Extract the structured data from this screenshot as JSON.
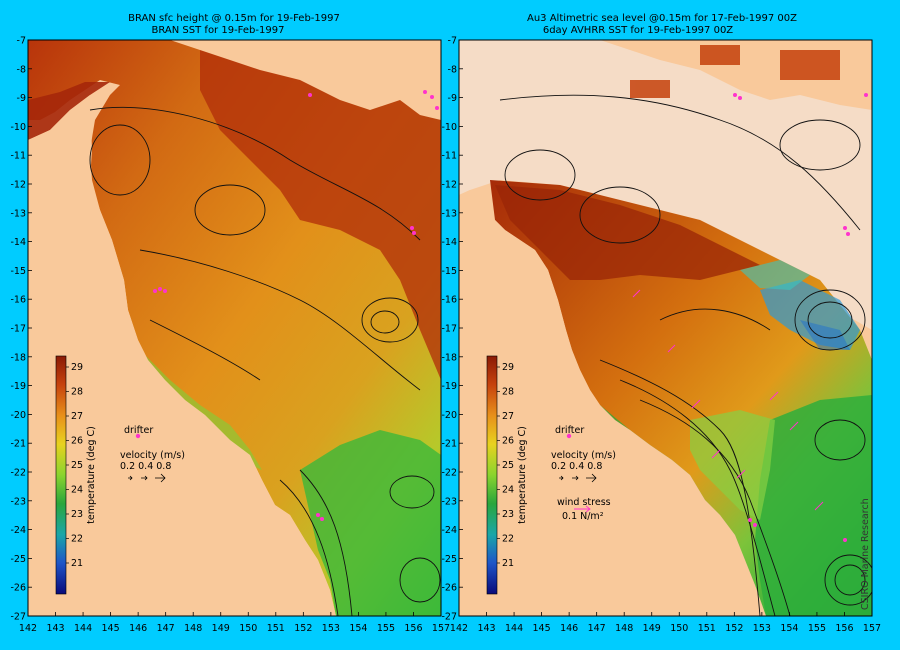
{
  "left_panel": {
    "title_line1": "BRAN sfc height @ 0.15m  for 19-Feb-1997",
    "title_line2": "BRAN SST for 19-Feb-1997",
    "colorbar_label": "temperature (deg C)",
    "drifter_label": "drifter",
    "velocity_label": "velocity (m/s)",
    "velocity_scale": "0.2 0.4 0.8"
  },
  "right_panel": {
    "title_line1": "Au3 Altimetric sea level  @0.15m  for 17-Feb-1997 00Z",
    "title_line2": "6day AVHRR SST for 19-Feb-1997 00Z",
    "colorbar_label": "temperature (deg C)",
    "drifter_label": "drifter",
    "velocity_label": "velocity (m/s)",
    "velocity_scale": "0.2 0.4 0.8",
    "wind_label": "wind stress",
    "wind_scale": "0.1 N/m²",
    "credit": "CSIRO Marine Research"
  },
  "map_data": {
    "lon_ticks": [
      142,
      143,
      144,
      145,
      146,
      147,
      148,
      149,
      150,
      151,
      152,
      153,
      154,
      155,
      156,
      157
    ],
    "lat_ticks": [
      -7,
      -8,
      -9,
      -10,
      -11,
      -12,
      -13,
      -14,
      -15,
      -16,
      -17,
      -18,
      -19,
      -20,
      -21,
      -22,
      -23,
      -24,
      -25,
      -26,
      -27
    ],
    "lon_range": [
      142,
      157
    ],
    "lat_range": [
      -27,
      -7
    ],
    "colorbar_ticks": [
      29,
      28,
      27,
      26,
      25,
      24,
      23,
      22,
      21
    ],
    "colors": {
      "background": "#00ccff",
      "land": "#f9c99b",
      "no_data": "#f5dcc6"
    }
  }
}
